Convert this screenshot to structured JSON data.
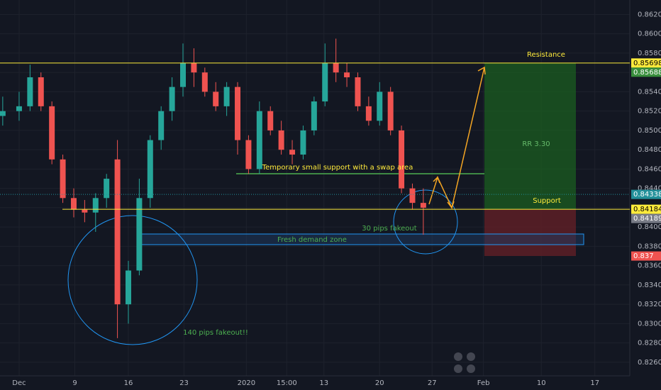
{
  "chart_data": {
    "type": "candlestick",
    "x": [
      -1.5,
      0,
      1,
      2,
      3,
      4,
      5,
      6,
      7,
      8,
      9,
      10,
      11,
      12,
      13,
      14,
      15,
      16,
      17,
      18,
      19,
      20,
      21,
      22,
      23,
      24,
      25,
      26,
      27,
      28,
      29,
      30,
      31,
      32,
      33,
      34,
      35,
      36,
      37
    ],
    "open": [
      0.8515,
      0.852,
      0.8525,
      0.8555,
      0.8525,
      0.847,
      0.843,
      0.8418,
      0.8415,
      0.843,
      0.847,
      0.832,
      0.8355,
      0.843,
      0.849,
      0.852,
      0.8545,
      0.857,
      0.856,
      0.854,
      0.8525,
      0.8545,
      0.849,
      0.846,
      0.852,
      0.85,
      0.848,
      0.8475,
      0.85,
      0.853,
      0.857,
      0.856,
      0.8555,
      0.8525,
      0.851,
      0.854,
      0.85,
      0.844,
      0.8425
    ],
    "high": [
      0.8535,
      0.854,
      0.8568,
      0.856,
      0.853,
      0.8475,
      0.844,
      0.8428,
      0.8435,
      0.8455,
      0.849,
      0.8365,
      0.845,
      0.8495,
      0.8525,
      0.8555,
      0.859,
      0.8585,
      0.8565,
      0.855,
      0.855,
      0.855,
      0.8495,
      0.853,
      0.8525,
      0.851,
      0.849,
      0.8505,
      0.8535,
      0.859,
      0.8595,
      0.857,
      0.856,
      0.8535,
      0.855,
      0.8545,
      0.8505,
      0.8445,
      0.844
    ],
    "low": [
      0.8505,
      0.851,
      0.852,
      0.852,
      0.8465,
      0.8425,
      0.841,
      0.8405,
      0.8395,
      0.842,
      0.8285,
      0.83,
      0.835,
      0.842,
      0.848,
      0.851,
      0.8535,
      0.8545,
      0.8535,
      0.852,
      0.8515,
      0.8475,
      0.8455,
      0.8455,
      0.8495,
      0.8475,
      0.8465,
      0.847,
      0.8495,
      0.8525,
      0.855,
      0.8545,
      0.852,
      0.8505,
      0.8505,
      0.8495,
      0.8435,
      0.8418,
      0.8392
    ],
    "close": [
      0.852,
      0.8525,
      0.8555,
      0.8525,
      0.847,
      0.843,
      0.8418,
      0.8415,
      0.843,
      0.845,
      0.832,
      0.8355,
      0.843,
      0.849,
      0.852,
      0.8545,
      0.857,
      0.856,
      0.854,
      0.8525,
      0.8545,
      0.849,
      0.846,
      0.852,
      0.85,
      0.848,
      0.8475,
      0.85,
      0.853,
      0.857,
      0.856,
      0.8555,
      0.8525,
      0.851,
      0.854,
      0.85,
      0.844,
      0.8425,
      0.842
    ],
    "up_color": "#26a69a",
    "down_color": "#ef5350",
    "xlim": [
      -1.75,
      55.9
    ],
    "xticks": [
      {
        "value": 0,
        "label": "Dec"
      },
      {
        "value": 5.1,
        "label": "9"
      },
      {
        "value": 10,
        "label": "16"
      },
      {
        "value": 15.1,
        "label": "23"
      },
      {
        "value": 20.8,
        "label": "2020"
      },
      {
        "value": 24.5,
        "label": "15:00"
      },
      {
        "value": 27.9,
        "label": "13"
      },
      {
        "value": 33,
        "label": "20"
      },
      {
        "value": 37.8,
        "label": "27"
      },
      {
        "value": 42.5,
        "label": "Feb"
      },
      {
        "value": 47.8,
        "label": "10"
      },
      {
        "value": 52.7,
        "label": "17"
      }
    ],
    "ylim": [
      0.8246,
      0.8635
    ],
    "yticks": [
      {
        "value": 0.826,
        "label": "0.82600"
      },
      {
        "value": 0.828,
        "label": "0.82800"
      },
      {
        "value": 0.83,
        "label": "0.83000"
      },
      {
        "value": 0.832,
        "label": "0.83200"
      },
      {
        "value": 0.834,
        "label": "0.83400"
      },
      {
        "value": 0.836,
        "label": "0.83600"
      },
      {
        "value": 0.838,
        "label": "0.83800"
      },
      {
        "value": 0.84,
        "label": "0.84000"
      },
      {
        "value": 0.842,
        "label": "0.84200"
      },
      {
        "value": 0.844,
        "label": "0.84400"
      },
      {
        "value": 0.846,
        "label": "0.84600"
      },
      {
        "value": 0.848,
        "label": "0.84800"
      },
      {
        "value": 0.85,
        "label": "0.85000"
      },
      {
        "value": 0.852,
        "label": "0.85200"
      },
      {
        "value": 0.854,
        "label": "0.85400"
      },
      {
        "value": 0.856,
        "label": "0.85600"
      },
      {
        "value": 0.858,
        "label": "0.85800"
      },
      {
        "value": 0.86,
        "label": "0.86000"
      },
      {
        "value": 0.862,
        "label": "0.86200"
      }
    ],
    "grid": true,
    "price_labels": [
      {
        "value": 0.85698,
        "color": "#ffeb3b"
      },
      {
        "value": 0.85688,
        "color": "#388e3c"
      },
      {
        "value": 0.84338,
        "color": "#22909a"
      },
      {
        "value": 0.84184,
        "color": "#ffeb3b"
      },
      {
        "value": 0.84189,
        "color": "#787b86"
      },
      {
        "value": 0.837,
        "color": "#ef5350"
      }
    ],
    "annotations": [
      "Resistance",
      "Support",
      "RR 3.30",
      "Temporary small support with a swap area",
      "30 pips fakeout",
      "Fresh demand zone",
      "140 pips fakeout!!"
    ]
  }
}
